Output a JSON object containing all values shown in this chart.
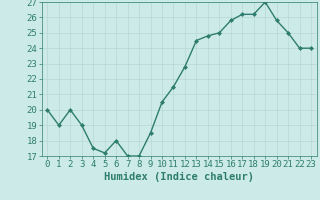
{
  "x": [
    0,
    1,
    2,
    3,
    4,
    5,
    6,
    7,
    8,
    9,
    10,
    11,
    12,
    13,
    14,
    15,
    16,
    17,
    18,
    19,
    20,
    21,
    22,
    23
  ],
  "y": [
    20,
    19,
    20,
    19,
    17.5,
    17.2,
    18,
    17,
    17,
    18.5,
    20.5,
    21.5,
    22.8,
    24.5,
    24.8,
    25,
    25.8,
    26.2,
    26.2,
    27,
    25.8,
    25,
    24,
    24
  ],
  "line_color": "#2e7d6e",
  "marker": "D",
  "marker_size": 2.0,
  "bg_color": "#cceae8",
  "grid_color": "#b8d8d5",
  "xlabel": "Humidex (Indice chaleur)",
  "ylim": [
    17,
    27
  ],
  "xlim": [
    -0.5,
    23.5
  ],
  "yticks": [
    17,
    18,
    19,
    20,
    21,
    22,
    23,
    24,
    25,
    26,
    27
  ],
  "xticks": [
    0,
    1,
    2,
    3,
    4,
    5,
    6,
    7,
    8,
    9,
    10,
    11,
    12,
    13,
    14,
    15,
    16,
    17,
    18,
    19,
    20,
    21,
    22,
    23
  ],
  "tick_color": "#2e7d6e",
  "label_color": "#2e7d6e",
  "font_size": 6.5,
  "xlabel_fontsize": 7.5,
  "linewidth": 1.0
}
